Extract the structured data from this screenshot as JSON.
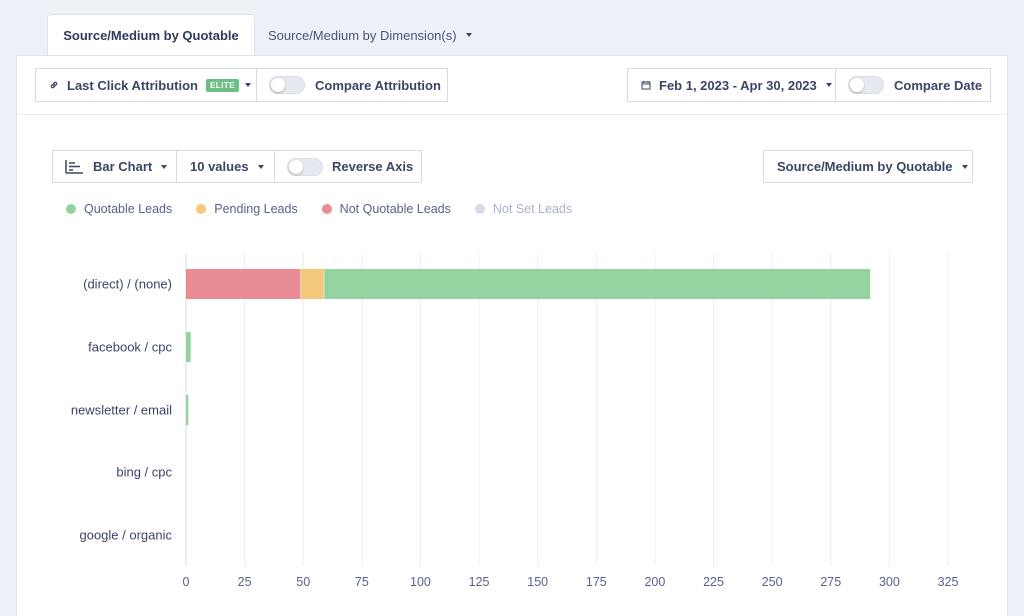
{
  "tabs": [
    {
      "label": "Source/Medium by Quotable",
      "active": true
    },
    {
      "label": "Source/Medium by Dimension(s)",
      "active": false
    }
  ],
  "toolbar": {
    "attribution_label": "Last Click Attribution",
    "attribution_badge": "ELITE",
    "compare_attribution_label": "Compare Attribution",
    "date_range_label": "Feb 1, 2023 - Apr 30, 2023",
    "compare_date_label": "Compare Date"
  },
  "chart_controls": {
    "chart_type_label": "Bar Chart",
    "values_label": "10 values",
    "reverse_axis_label": "Reverse Axis",
    "report_select_label": "Source/Medium by Quotable"
  },
  "legend": [
    {
      "label": "Quotable Leads",
      "color": "#94d39f"
    },
    {
      "label": "Pending Leads",
      "color": "#f4c97c"
    },
    {
      "label": "Not Quotable Leads",
      "color": "#ea8c93"
    },
    {
      "label": "Not Set Leads",
      "color": "#d8dce8"
    }
  ],
  "colors": {
    "quotable": "#94d39f",
    "pending": "#f4c97c",
    "not_quotable": "#ea8c93",
    "not_set": "#d8dce8"
  },
  "chart_data": {
    "type": "bar",
    "orientation": "horizontal",
    "stacked": true,
    "categories": [
      "(direct) / (none)",
      "facebook / cpc",
      "newsletter / email",
      "bing / cpc",
      "google / organic"
    ],
    "series": [
      {
        "name": "Not Quotable Leads",
        "values": [
          49,
          0,
          0,
          0,
          0
        ]
      },
      {
        "name": "Pending Leads",
        "values": [
          10,
          0,
          0,
          0,
          0
        ]
      },
      {
        "name": "Quotable Leads",
        "values": [
          233,
          2,
          1,
          0,
          0
        ]
      },
      {
        "name": "Not Set Leads",
        "values": [
          0,
          0,
          0,
          0,
          0
        ]
      }
    ],
    "xlim": [
      0,
      325
    ],
    "xticks": [
      0,
      25,
      50,
      75,
      100,
      125,
      150,
      175,
      200,
      225,
      250,
      275,
      300,
      325
    ],
    "grid": true,
    "legend_position": "top-left"
  }
}
